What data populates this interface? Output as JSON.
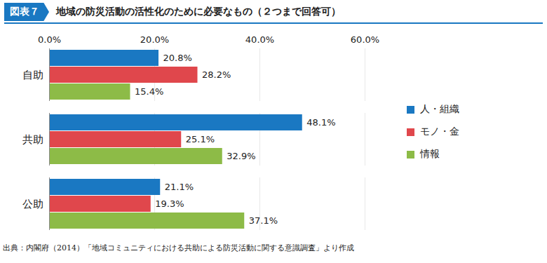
{
  "chart_data": {
    "type": "bar",
    "orientation": "horizontal",
    "figure_label": "図表７",
    "title": "地域の防災活動の活性化のために必要なもの（２つまで回答可）",
    "caption": "出典：内閣府（2014）「地域コミュニティにおける共助による防災活動に関する意識調査」より作成",
    "categories": [
      "自助",
      "共助",
      "公助"
    ],
    "series": [
      {
        "name": "人・組織",
        "color": "#1a78c2",
        "values": [
          20.8,
          48.1,
          21.1
        ],
        "value_labels": [
          "20.8%",
          "48.1%",
          "21.1%"
        ]
      },
      {
        "name": "モノ・金",
        "color": "#e0474c",
        "values": [
          28.2,
          25.1,
          19.3
        ],
        "value_labels": [
          "28.2%",
          "25.1%",
          "19.3%"
        ]
      },
      {
        "name": "情報",
        "color": "#8dbb47",
        "values": [
          15.4,
          32.9,
          37.1
        ],
        "value_labels": [
          "15.4%",
          "32.9%",
          "37.1%"
        ]
      }
    ],
    "xlim": [
      0,
      60
    ],
    "xticks": [
      {
        "value": 0,
        "label": "0.0%"
      },
      {
        "value": 20,
        "label": "20.0%"
      },
      {
        "value": 40,
        "label": "40.0%"
      },
      {
        "value": 60,
        "label": "60.0%"
      }
    ],
    "grid": true,
    "data_labels": true,
    "legend": "right"
  }
}
